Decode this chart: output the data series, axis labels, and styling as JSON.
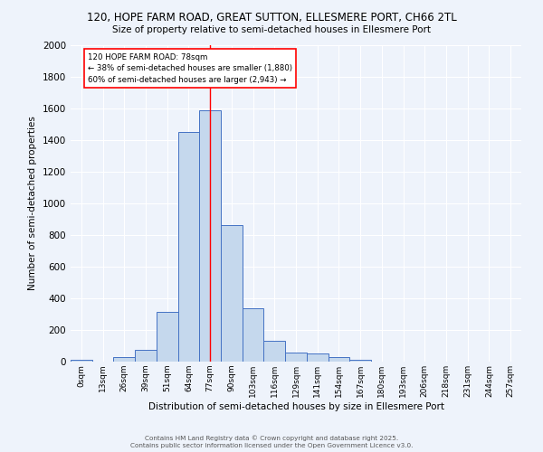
{
  "title1": "120, HOPE FARM ROAD, GREAT SUTTON, ELLESMERE PORT, CH66 2TL",
  "title2": "Size of property relative to semi-detached houses in Ellesmere Port",
  "xlabel": "Distribution of semi-detached houses by size in Ellesmere Port",
  "ylabel": "Number of semi-detached properties",
  "categories": [
    "0sqm",
    "13sqm",
    "26sqm",
    "39sqm",
    "51sqm",
    "64sqm",
    "77sqm",
    "90sqm",
    "103sqm",
    "116sqm",
    "129sqm",
    "141sqm",
    "154sqm",
    "167sqm",
    "180sqm",
    "193sqm",
    "206sqm",
    "218sqm",
    "231sqm",
    "244sqm",
    "257sqm"
  ],
  "bar_heights": [
    10,
    0,
    30,
    75,
    315,
    1450,
    1590,
    865,
    335,
    130,
    60,
    50,
    30,
    10,
    0,
    0,
    0,
    0,
    0,
    0,
    0
  ],
  "bar_color": "#c5d8ed",
  "bar_edge_color": "#4472c4",
  "vline_x": 6,
  "vline_color": "red",
  "annotation_title": "120 HOPE FARM ROAD: 78sqm",
  "annotation_line1": "← 38% of semi-detached houses are smaller (1,880)",
  "annotation_line2": "60% of semi-detached houses are larger (2,943) →",
  "annotation_box_color": "white",
  "annotation_box_edge": "red",
  "ylim": [
    0,
    2000
  ],
  "yticks": [
    0,
    200,
    400,
    600,
    800,
    1000,
    1200,
    1400,
    1600,
    1800,
    2000
  ],
  "bg_color": "#eef3fb",
  "grid_color": "white",
  "footer1": "Contains HM Land Registry data © Crown copyright and database right 2025.",
  "footer2": "Contains public sector information licensed under the Open Government Licence v3.0."
}
